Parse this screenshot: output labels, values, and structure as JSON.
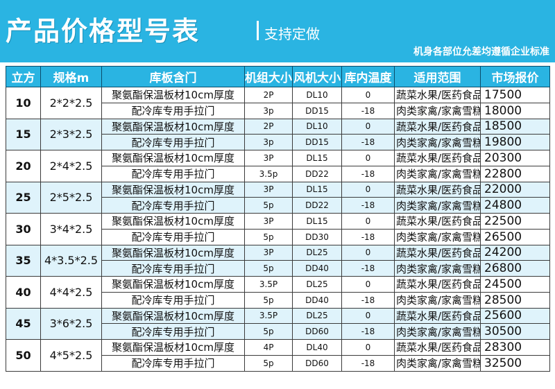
{
  "header": {
    "title": "产品价格型号表",
    "subtitle": "支持定做",
    "note": "机身各部位允差均遵循企业标准"
  },
  "table": {
    "columns": [
      "立方",
      "规格m",
      "库板含门",
      "机组大小",
      "风机大小",
      "库内温度",
      "适用范围",
      "市场报价"
    ],
    "door_line1": "聚氨酯保温板材10cm厚度",
    "door_line2": "配冷库专用手拉门",
    "groups": [
      {
        "volume": "10",
        "spec": "2*2*2.5",
        "rows": [
          {
            "unit": "2P",
            "fan": "DL10",
            "temp": "0",
            "use": "蔬菜水果/医药食品",
            "price": "17500"
          },
          {
            "unit": "3p",
            "fan": "DD15",
            "temp": "-18",
            "use": "肉类家禽/家禽雪糕",
            "price": "18000"
          }
        ]
      },
      {
        "volume": "15",
        "spec": "2*3*2.5",
        "rows": [
          {
            "unit": "2P",
            "fan": "DL10",
            "temp": "0",
            "use": "蔬菜水果/医药食品",
            "price": "18500"
          },
          {
            "unit": "3p",
            "fan": "DD15",
            "temp": "-18",
            "use": "肉类家禽/家禽雪糕",
            "price": "19800"
          }
        ]
      },
      {
        "volume": "20",
        "spec": "2*4*2.5",
        "rows": [
          {
            "unit": "3P",
            "fan": "DL15",
            "temp": "0",
            "use": "蔬菜水果/医药食品",
            "price": "20300"
          },
          {
            "unit": "3.5p",
            "fan": "DD22",
            "temp": "-18",
            "use": "肉类家禽/家禽雪糕",
            "price": "22800"
          }
        ]
      },
      {
        "volume": "25",
        "spec": "2*5*2.5",
        "rows": [
          {
            "unit": "3P",
            "fan": "DL15",
            "temp": "0",
            "use": "蔬菜水果/医药食品",
            "price": "22000"
          },
          {
            "unit": "5p",
            "fan": "DD22",
            "temp": "-18",
            "use": "肉类家禽/家禽雪糕",
            "price": "24800"
          }
        ]
      },
      {
        "volume": "30",
        "spec": "3*4*2.5",
        "rows": [
          {
            "unit": "3P",
            "fan": "DL15",
            "temp": "0",
            "use": "蔬菜水果/医药食品",
            "price": "22500"
          },
          {
            "unit": "5p",
            "fan": "DD30",
            "temp": "-18",
            "use": "肉类家禽/家禽雪糕",
            "price": "26500"
          }
        ]
      },
      {
        "volume": "35",
        "spec": "4*3.5*2.5",
        "rows": [
          {
            "unit": "3P",
            "fan": "DL25",
            "temp": "0",
            "use": "蔬菜水果/医药食品",
            "price": "24200"
          },
          {
            "unit": "5p",
            "fan": "DD40",
            "temp": "-18",
            "use": "肉类家禽/家禽雪糕",
            "price": "26800"
          }
        ]
      },
      {
        "volume": "40",
        "spec": "4*4*2.5",
        "rows": [
          {
            "unit": "3.5P",
            "fan": "DL25",
            "temp": "0",
            "use": "蔬菜水果/医药食品",
            "price": "24500"
          },
          {
            "unit": "5p",
            "fan": "DD40",
            "temp": "-18",
            "use": "肉类家禽/家禽雪糕",
            "price": "28500"
          }
        ]
      },
      {
        "volume": "45",
        "spec": "3*6*2.5",
        "rows": [
          {
            "unit": "3.5P",
            "fan": "DL25",
            "temp": "0",
            "use": "蔬菜水果/医药食品",
            "price": "25600"
          },
          {
            "unit": "5p",
            "fan": "DD60",
            "temp": "-18",
            "use": "肉类家禽/家禽雪糕",
            "price": "30500"
          }
        ]
      },
      {
        "volume": "50",
        "spec": "4*5*2.5",
        "rows": [
          {
            "unit": "4P",
            "fan": "DL40",
            "temp": "0",
            "use": "蔬菜水果/医药食品",
            "price": "28300"
          },
          {
            "unit": "5p",
            "fan": "DD60",
            "temp": "-18",
            "use": "肉类家禽/家禽雪糕",
            "price": "32500"
          }
        ]
      }
    ]
  }
}
